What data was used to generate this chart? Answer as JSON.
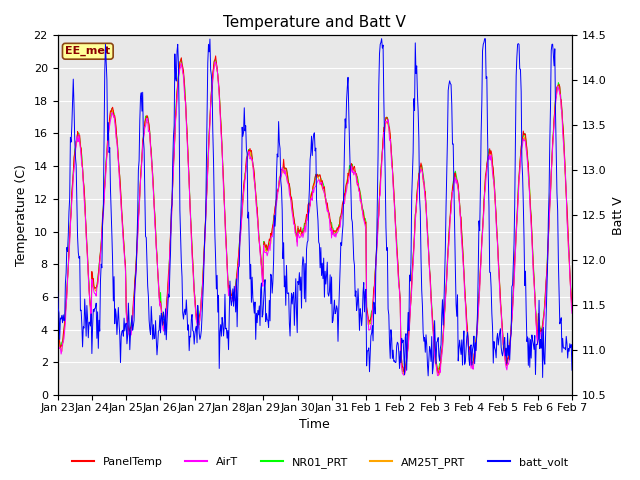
{
  "title": "Temperature and Batt V",
  "xlabel": "Time",
  "ylabel_left": "Temperature (C)",
  "ylabel_right": "Batt V",
  "annotation": "EE_met",
  "ylim_left": [
    0,
    22
  ],
  "ylim_right": [
    10.5,
    14.5
  ],
  "yticks_left": [
    0,
    2,
    4,
    6,
    8,
    10,
    12,
    14,
    16,
    18,
    20,
    22
  ],
  "yticks_right": [
    10.5,
    11.0,
    11.5,
    12.0,
    12.5,
    13.0,
    13.5,
    14.0,
    14.5
  ],
  "xtick_labels": [
    "Jan 23",
    "Jan 24",
    "Jan 25",
    "Jan 26",
    "Jan 27",
    "Jan 28",
    "Jan 29",
    "Jan 30",
    "Jan 31",
    "Feb 1",
    "Feb 2",
    "Feb 3",
    "Feb 4",
    "Feb 5",
    "Feb 6",
    "Feb 7"
  ],
  "legend": [
    {
      "label": "PanelTemp",
      "color": "#FF0000"
    },
    {
      "label": "AirT",
      "color": "#FF00FF"
    },
    {
      "label": "NR01_PRT",
      "color": "#00FF00"
    },
    {
      "label": "AM25T_PRT",
      "color": "#FFA500"
    },
    {
      "label": "batt_volt",
      "color": "#0000FF"
    }
  ],
  "background_color": "#FFFFFF",
  "plot_bg_color": "#E8E8E8",
  "grid_color": "#FFFFFF",
  "title_fontsize": 11,
  "axis_fontsize": 9,
  "tick_fontsize": 8,
  "n_days": 15,
  "pts_per_day": 48
}
